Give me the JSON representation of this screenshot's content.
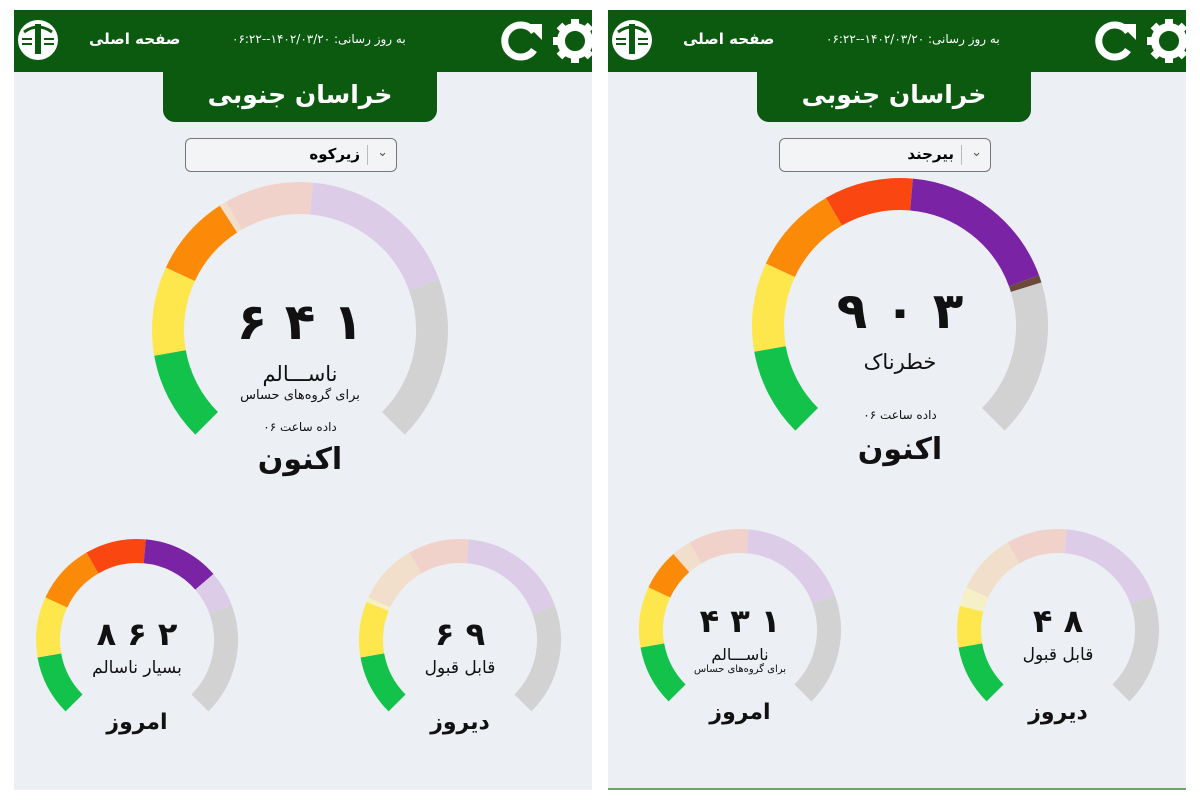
{
  "colors": {
    "header": "#0b5a10",
    "background": "#eceff4"
  },
  "scale": {
    "segments": [
      {
        "from": 0,
        "to": 50,
        "color": "#13c24a",
        "pale": "#c9eed4"
      },
      {
        "from": 50,
        "to": 100,
        "color": "#fde74c",
        "pale": "#f6f0c6"
      },
      {
        "from": 100,
        "to": 150,
        "color": "#fb8a08",
        "pale": "#f1dfcb"
      },
      {
        "from": 150,
        "to": 200,
        "color": "#fa4711",
        "pale": "#f1d2cb"
      },
      {
        "from": 200,
        "to": 300,
        "color": "#7a23a4",
        "pale": "#dccce8"
      },
      {
        "from": 300,
        "to": 500,
        "color": "#6b4a3a",
        "pale": "#d2d2d2"
      }
    ]
  },
  "panels": [
    {
      "header": {
        "home_label": "صفحه اصلی",
        "update_label": "به روز رسانی:",
        "update_time": "۱۴۰۲/۰۳/۲۰--۰۶:۲۲",
        "icons": [
          "logo-icon",
          "refresh-icon",
          "gear-icon"
        ]
      },
      "province": "خراسان جنوبی",
      "city_select": {
        "value": "زیرکوه"
      },
      "now": {
        "value": 146,
        "value_text": "۱ ۴ ۶",
        "category": "ناســـالم",
        "category_sub": "برای گروه‌های حساس",
        "data_hour": "داده ساعت ۰۶",
        "label": "اکنون"
      },
      "today": {
        "value": 268,
        "value_text": "۲ ۶ ۸",
        "category": "بسیار ناسالم",
        "category_sub": "",
        "label": "امروز"
      },
      "yesterday": {
        "value": 96,
        "value_text": "۹ ۶",
        "category": "قابل قبول",
        "category_sub": "",
        "label": "دیروز"
      }
    },
    {
      "header": {
        "home_label": "صفحه اصلی",
        "update_label": "به روز رسانی:",
        "update_time": "۱۴۰۲/۰۳/۲۰--۰۶:۲۲",
        "icons": [
          "logo-icon",
          "refresh-icon",
          "gear-icon"
        ]
      },
      "province": "خراسان جنوبی",
      "city_select": {
        "value": "بیرجند"
      },
      "now": {
        "value": 309,
        "value_text": "۳ ۰ ۹",
        "category": "خطرناک",
        "category_sub": "",
        "data_hour": "داده ساعت ۰۶",
        "label": "اکنون"
      },
      "today": {
        "value": 134,
        "value_text": "۱ ۳ ۴",
        "category": "ناســـالم",
        "category_sub": "برای گروه‌های حساس",
        "label": "امروز"
      },
      "yesterday": {
        "value": 84,
        "value_text": "۸ ۴",
        "category": "قابل قبول",
        "category_sub": "",
        "label": "دیروز"
      }
    }
  ]
}
